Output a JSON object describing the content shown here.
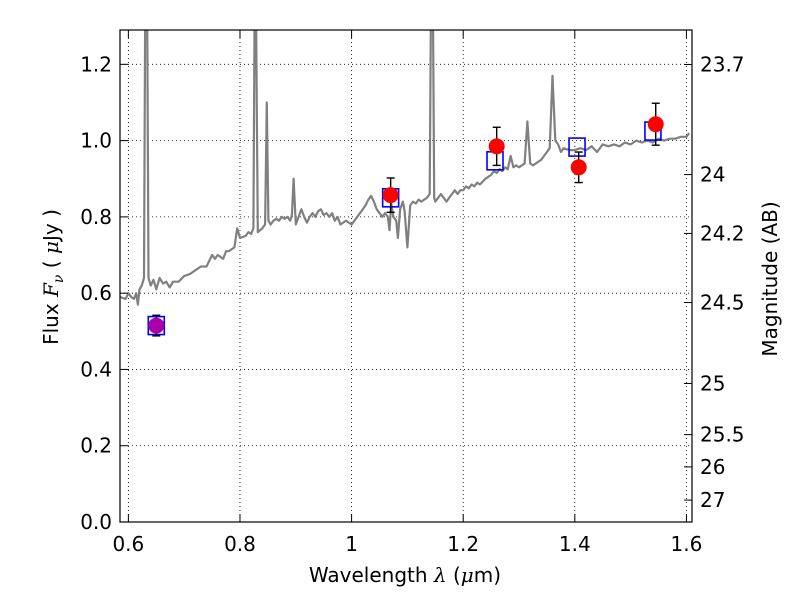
{
  "chart_data": {
    "type": "scatter",
    "xlabel_prefix": "Wavelength",
    "xlabel_symbol": "λ",
    "xlabel_unit_open": "(",
    "xlabel_unit_mu": "μ",
    "xlabel_unit_rest": "m)",
    "ylabel_prefix": "Flux",
    "ylabel_symbol": "F",
    "ylabel_subscript": "ν",
    "ylabel_unit_open": "(",
    "ylabel_unit_mu": "μ",
    "ylabel_unit_rest": "Jy )",
    "y2label": "Magnitude (AB)",
    "xlim": [
      0.585,
      1.61
    ],
    "ylim": [
      0.0,
      1.29
    ],
    "grid": true,
    "x_ticks": [
      {
        "value": 0.6,
        "label": "0.6"
      },
      {
        "value": 0.8,
        "label": "0.8"
      },
      {
        "value": 1.0,
        "label": "1"
      },
      {
        "value": 1.2,
        "label": "1.2"
      },
      {
        "value": 1.4,
        "label": "1.4"
      },
      {
        "value": 1.6,
        "label": "1.6"
      }
    ],
    "y_ticks": [
      {
        "value": 0.0,
        "label": "0.0"
      },
      {
        "value": 0.2,
        "label": "0.2"
      },
      {
        "value": 0.4,
        "label": "0.4"
      },
      {
        "value": 0.6,
        "label": "0.6"
      },
      {
        "value": 0.8,
        "label": "0.8"
      },
      {
        "value": 1.0,
        "label": "1.0"
      },
      {
        "value": 1.2,
        "label": "1.2"
      }
    ],
    "y2_ticks": [
      {
        "flux": 1.1995,
        "label": "23.7"
      },
      {
        "flux": 0.9109,
        "label": "24"
      },
      {
        "flux": 0.7566,
        "label": "24.2"
      },
      {
        "flux": 0.5754,
        "label": "24.5"
      },
      {
        "flux": 0.3631,
        "label": "25"
      },
      {
        "flux": 0.2291,
        "label": "25.5"
      },
      {
        "flux": 0.1445,
        "label": "26"
      },
      {
        "flux": 0.0575,
        "label": "27"
      }
    ],
    "spectrum": {
      "color": "#808080",
      "points": [
        [
          0.585,
          0.59
        ],
        [
          0.595,
          0.585
        ],
        [
          0.6,
          0.6
        ],
        [
          0.605,
          0.59
        ],
        [
          0.61,
          0.585
        ],
        [
          0.614,
          0.6
        ],
        [
          0.617,
          0.57
        ],
        [
          0.62,
          0.61
        ],
        [
          0.624,
          0.62
        ],
        [
          0.628,
          0.64
        ],
        [
          0.63,
          1.29
        ],
        [
          0.634,
          1.29
        ],
        [
          0.636,
          0.64
        ],
        [
          0.64,
          0.62
        ],
        [
          0.645,
          0.635
        ],
        [
          0.65,
          0.61
        ],
        [
          0.656,
          0.64
        ],
        [
          0.662,
          0.625
        ],
        [
          0.668,
          0.63
        ],
        [
          0.674,
          0.615
        ],
        [
          0.68,
          0.63
        ],
        [
          0.69,
          0.63
        ],
        [
          0.7,
          0.645
        ],
        [
          0.71,
          0.65
        ],
        [
          0.72,
          0.66
        ],
        [
          0.73,
          0.67
        ],
        [
          0.74,
          0.67
        ],
        [
          0.75,
          0.7
        ],
        [
          0.755,
          0.69
        ],
        [
          0.76,
          0.7
        ],
        [
          0.77,
          0.69
        ],
        [
          0.775,
          0.71
        ],
        [
          0.78,
          0.71
        ],
        [
          0.79,
          0.72
        ],
        [
          0.795,
          0.77
        ],
        [
          0.8,
          0.745
        ],
        [
          0.81,
          0.75
        ],
        [
          0.815,
          0.76
        ],
        [
          0.82,
          0.755
        ],
        [
          0.824,
          0.77
        ],
        [
          0.826,
          1.29
        ],
        [
          0.829,
          1.29
        ],
        [
          0.832,
          0.76
        ],
        [
          0.84,
          0.77
        ],
        [
          0.845,
          0.78
        ],
        [
          0.848,
          1.1
        ],
        [
          0.851,
          0.79
        ],
        [
          0.855,
          0.78
        ],
        [
          0.86,
          0.79
        ],
        [
          0.865,
          0.795
        ],
        [
          0.87,
          0.79
        ],
        [
          0.875,
          0.8
        ],
        [
          0.88,
          0.795
        ],
        [
          0.885,
          0.8
        ],
        [
          0.89,
          0.79
        ],
        [
          0.893,
          0.805
        ],
        [
          0.896,
          0.9
        ],
        [
          0.9,
          0.78
        ],
        [
          0.905,
          0.8
        ],
        [
          0.91,
          0.82
        ],
        [
          0.915,
          0.8
        ],
        [
          0.92,
          0.785
        ],
        [
          0.925,
          0.8
        ],
        [
          0.93,
          0.81
        ],
        [
          0.935,
          0.8
        ],
        [
          0.94,
          0.815
        ],
        [
          0.945,
          0.82
        ],
        [
          0.95,
          0.805
        ],
        [
          0.955,
          0.81
        ],
        [
          0.96,
          0.8
        ],
        [
          0.965,
          0.81
        ],
        [
          0.97,
          0.79
        ],
        [
          0.975,
          0.8
        ],
        [
          0.98,
          0.78
        ],
        [
          0.985,
          0.785
        ],
        [
          0.99,
          0.79
        ],
        [
          0.995,
          0.785
        ],
        [
          1.0,
          0.78
        ],
        [
          1.005,
          0.79
        ],
        [
          1.01,
          0.8
        ],
        [
          1.015,
          0.81
        ],
        [
          1.02,
          0.82
        ],
        [
          1.025,
          0.83
        ],
        [
          1.03,
          0.845
        ],
        [
          1.035,
          0.855
        ],
        [
          1.04,
          0.84
        ],
        [
          1.045,
          0.82
        ],
        [
          1.05,
          0.81
        ],
        [
          1.055,
          0.8
        ],
        [
          1.06,
          0.81
        ],
        [
          1.065,
          0.8
        ],
        [
          1.068,
          0.765
        ],
        [
          1.071,
          0.835
        ],
        [
          1.075,
          0.8
        ],
        [
          1.08,
          0.79
        ],
        [
          1.083,
          0.745
        ],
        [
          1.087,
          0.82
        ],
        [
          1.092,
          0.84
        ],
        [
          1.095,
          0.815
        ],
        [
          1.1,
          0.72
        ],
        [
          1.105,
          0.83
        ],
        [
          1.11,
          0.84
        ],
        [
          1.115,
          0.835
        ],
        [
          1.12,
          0.845
        ],
        [
          1.125,
          0.84
        ],
        [
          1.13,
          0.845
        ],
        [
          1.135,
          0.85
        ],
        [
          1.14,
          0.86
        ],
        [
          1.142,
          1.29
        ],
        [
          1.146,
          1.29
        ],
        [
          1.148,
          0.85
        ],
        [
          1.15,
          0.84
        ],
        [
          1.155,
          0.85
        ],
        [
          1.16,
          0.86
        ],
        [
          1.165,
          0.85
        ],
        [
          1.17,
          0.84
        ],
        [
          1.175,
          0.85
        ],
        [
          1.18,
          0.86
        ],
        [
          1.185,
          0.87
        ],
        [
          1.19,
          0.86
        ],
        [
          1.195,
          0.87
        ],
        [
          1.2,
          0.87
        ],
        [
          1.205,
          0.88
        ],
        [
          1.21,
          0.875
        ],
        [
          1.215,
          0.885
        ],
        [
          1.22,
          0.88
        ],
        [
          1.225,
          0.89
        ],
        [
          1.23,
          0.885
        ],
        [
          1.24,
          0.9
        ],
        [
          1.25,
          0.91
        ],
        [
          1.255,
          0.92
        ],
        [
          1.26,
          0.915
        ],
        [
          1.265,
          0.925
        ],
        [
          1.27,
          0.92
        ],
        [
          1.275,
          0.93
        ],
        [
          1.28,
          0.925
        ],
        [
          1.285,
          0.96
        ],
        [
          1.29,
          0.93
        ],
        [
          1.295,
          0.935
        ],
        [
          1.3,
          0.93
        ],
        [
          1.305,
          0.935
        ],
        [
          1.31,
          0.94
        ],
        [
          1.315,
          1.05
        ],
        [
          1.32,
          0.94
        ],
        [
          1.325,
          0.935
        ],
        [
          1.33,
          0.94
        ],
        [
          1.335,
          0.945
        ],
        [
          1.34,
          0.95
        ],
        [
          1.345,
          0.96
        ],
        [
          1.35,
          0.97
        ],
        [
          1.355,
          0.98
        ],
        [
          1.36,
          1.17
        ],
        [
          1.365,
          1.0
        ],
        [
          1.37,
          0.99
        ],
        [
          1.375,
          0.97
        ],
        [
          1.38,
          0.98
        ],
        [
          1.39,
          0.975
        ],
        [
          1.4,
          0.975
        ],
        [
          1.41,
          0.98
        ],
        [
          1.42,
          0.975
        ],
        [
          1.43,
          0.985
        ],
        [
          1.44,
          0.97
        ],
        [
          1.45,
          0.99
        ],
        [
          1.46,
          0.985
        ],
        [
          1.47,
          0.99
        ],
        [
          1.48,
          0.985
        ],
        [
          1.49,
          0.995
        ],
        [
          1.5,
          0.99
        ],
        [
          1.51,
          1.0
        ],
        [
          1.52,
          0.995
        ],
        [
          1.53,
          1.0
        ],
        [
          1.54,
          0.995
        ],
        [
          1.55,
          1.005
        ],
        [
          1.56,
          1.0
        ],
        [
          1.57,
          1.005
        ],
        [
          1.58,
          1.005
        ],
        [
          1.59,
          1.01
        ],
        [
          1.6,
          1.01
        ],
        [
          1.605,
          1.02
        ]
      ]
    },
    "model_points": {
      "marker": "open-square",
      "color": "#0000ff",
      "points": [
        {
          "x": 0.65,
          "y": 0.515
        },
        {
          "x": 1.07,
          "y": 0.85
        },
        {
          "x": 1.257,
          "y": 0.947
        },
        {
          "x": 1.404,
          "y": 0.983
        },
        {
          "x": 1.54,
          "y": 1.025
        }
      ]
    },
    "observed_points": {
      "marker": "filled-circle",
      "color": "#ff0000",
      "points": [
        {
          "x": 0.65,
          "y": 0.515,
          "yerr": 0.027,
          "color": "#aa00aa"
        },
        {
          "x": 1.07,
          "y": 0.857,
          "yerr": 0.045
        },
        {
          "x": 1.26,
          "y": 0.985,
          "yerr": 0.05
        },
        {
          "x": 1.407,
          "y": 0.93,
          "yerr": 0.04
        },
        {
          "x": 1.545,
          "y": 1.043,
          "yerr": 0.055
        }
      ]
    }
  }
}
